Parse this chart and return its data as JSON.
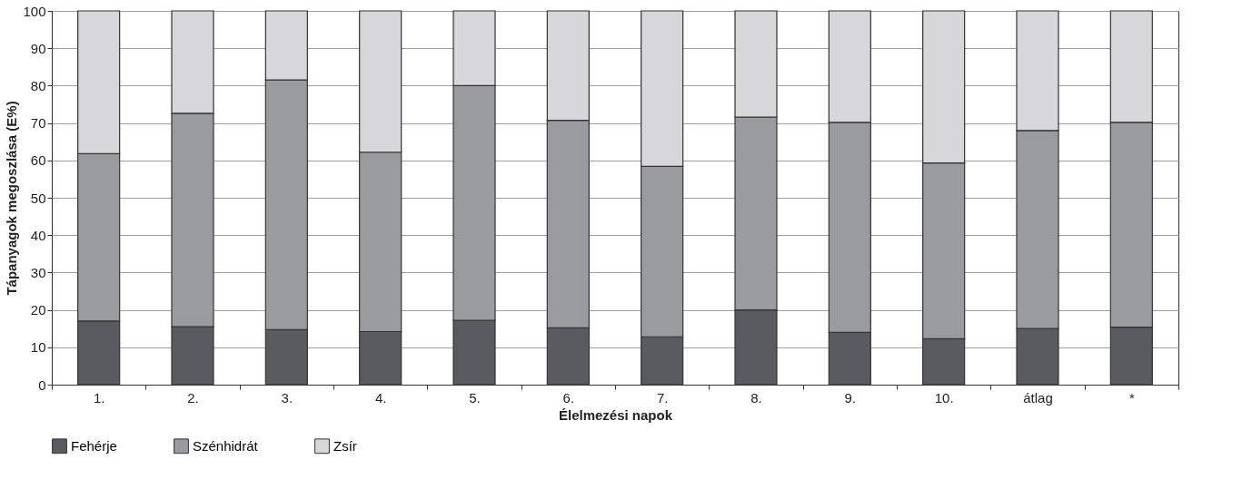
{
  "chart_data": {
    "type": "bar",
    "stacked": true,
    "xlabel": "Élelmezési napok",
    "ylabel": "Tápanyagok megoszlása (E%)",
    "categories": [
      "1.",
      "2.",
      "3.",
      "4.",
      "5.",
      "6.",
      "7.",
      "8.",
      "9.",
      "10.",
      "átlag",
      "*"
    ],
    "series": [
      {
        "name": "Fehérje",
        "color": "#5a5b60",
        "values": [
          17,
          15.5,
          14.7,
          14.2,
          17.2,
          15.2,
          12.8,
          20,
          14,
          12.3,
          15,
          15.4
        ]
      },
      {
        "name": "Szénhidrát",
        "color": "#9a9b9f",
        "values": [
          44.8,
          57.1,
          66.8,
          48,
          62.8,
          55.5,
          45.6,
          51.6,
          56.2,
          47,
          53,
          54.8
        ]
      },
      {
        "name": "Zsír",
        "color": "#d7d7d9",
        "values": [
          38.2,
          27.4,
          18.5,
          37.8,
          20,
          29.3,
          41.6,
          28.4,
          29.8,
          40.7,
          32,
          29.8
        ]
      }
    ],
    "ylim": [
      0,
      100
    ],
    "yticks": [
      0,
      10,
      20,
      30,
      40,
      50,
      60,
      70,
      80,
      90,
      100
    ],
    "grid": "y",
    "legend": "bottom"
  }
}
